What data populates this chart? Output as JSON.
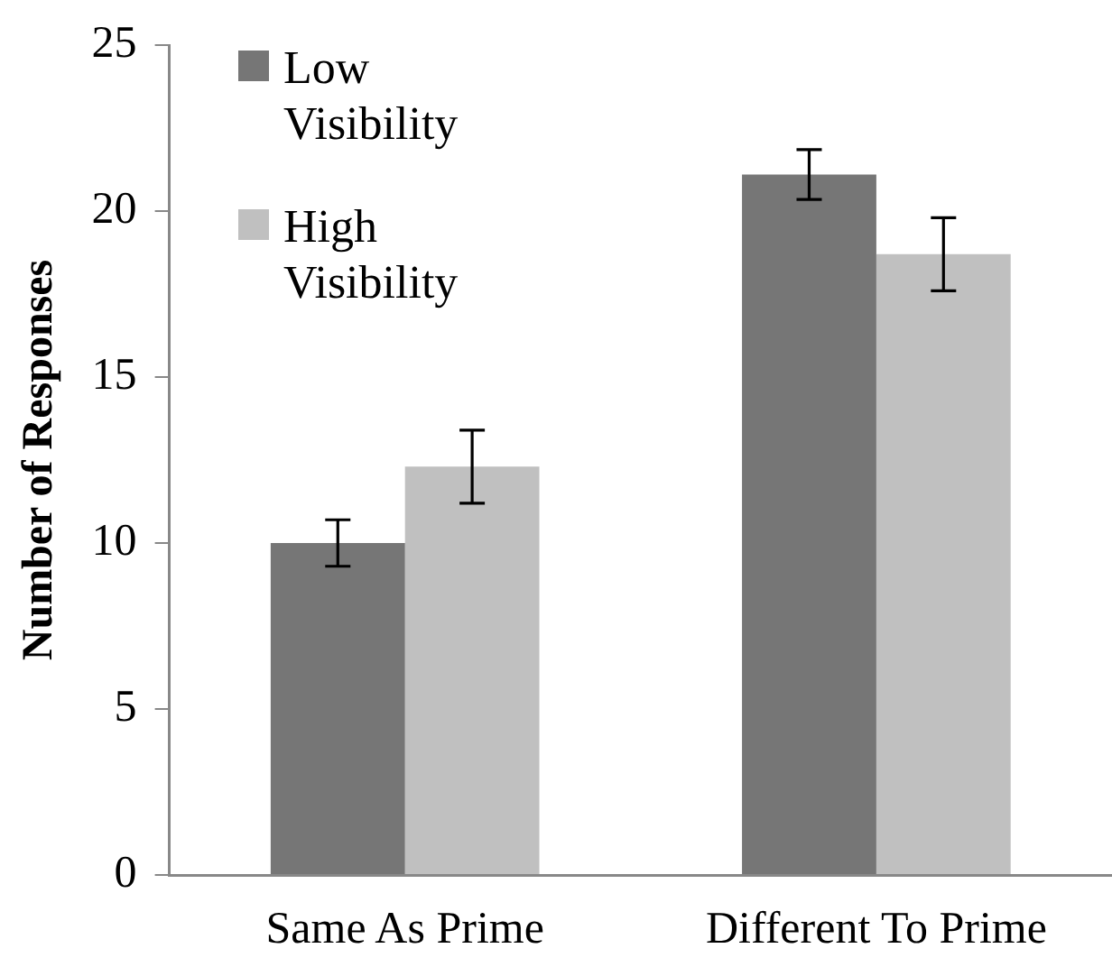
{
  "chart_data": {
    "type": "bar",
    "ylabel": "Number of Responses",
    "categories": [
      "Same As Prime",
      "Different To Prime"
    ],
    "series": [
      {
        "name": "Low Visibility",
        "color": "#767676",
        "values": [
          10.0,
          21.1
        ],
        "errors": [
          0.7,
          0.75
        ]
      },
      {
        "name": "High Visibility",
        "color": "#c0c0c0",
        "values": [
          12.3,
          18.7
        ],
        "errors": [
          1.1,
          1.1
        ]
      }
    ],
    "ylim": [
      0,
      25
    ],
    "yticks": [
      0,
      5,
      10,
      15,
      20,
      25
    ],
    "grid": false,
    "legend": "top left"
  }
}
